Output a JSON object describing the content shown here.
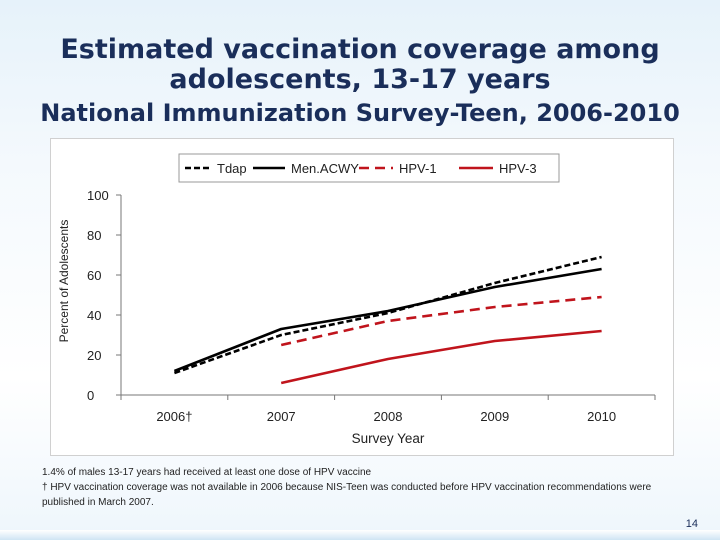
{
  "slide": {
    "title_line1": "Estimated vaccination coverage among",
    "title_line2": "adolescents, 13-17 years",
    "subtitle": "National Immunization Survey-Teen,  2006-2010",
    "footnote1": "1.4% of males 13-17 years had received at least one dose of HPV vaccine",
    "footnote2": "† HPV vaccination coverage was not available in 2006 because NIS-Teen was conducted before HPV vaccination recommendations were published in March 2007.",
    "page_number": "14"
  },
  "chart_data": {
    "type": "line",
    "title": "",
    "xlabel": "Survey Year",
    "ylabel": "Percent of Adolescents",
    "categories": [
      "2006†",
      "2007",
      "2008",
      "2009",
      "2010"
    ],
    "ylim": [
      0,
      100
    ],
    "yticks": [
      0,
      20,
      40,
      60,
      80,
      100
    ],
    "ytick_labels": [
      "0",
      "20",
      "40",
      "60",
      "80",
      "100"
    ],
    "grid": false,
    "legend_position": "top",
    "series": [
      {
        "name": "Tdap",
        "color": "#000000",
        "dash": "short",
        "values": [
          11,
          30,
          41,
          56,
          69
        ]
      },
      {
        "name": "Men.ACWY",
        "color": "#000000",
        "dash": "solid",
        "values": [
          12,
          33,
          42,
          54,
          63
        ]
      },
      {
        "name": "HPV-1",
        "color": "#c0141c",
        "dash": "long",
        "values": [
          null,
          25,
          37,
          44,
          49
        ]
      },
      {
        "name": "HPV-3",
        "color": "#c0141c",
        "dash": "solid",
        "values": [
          null,
          6,
          18,
          27,
          32
        ]
      }
    ]
  }
}
